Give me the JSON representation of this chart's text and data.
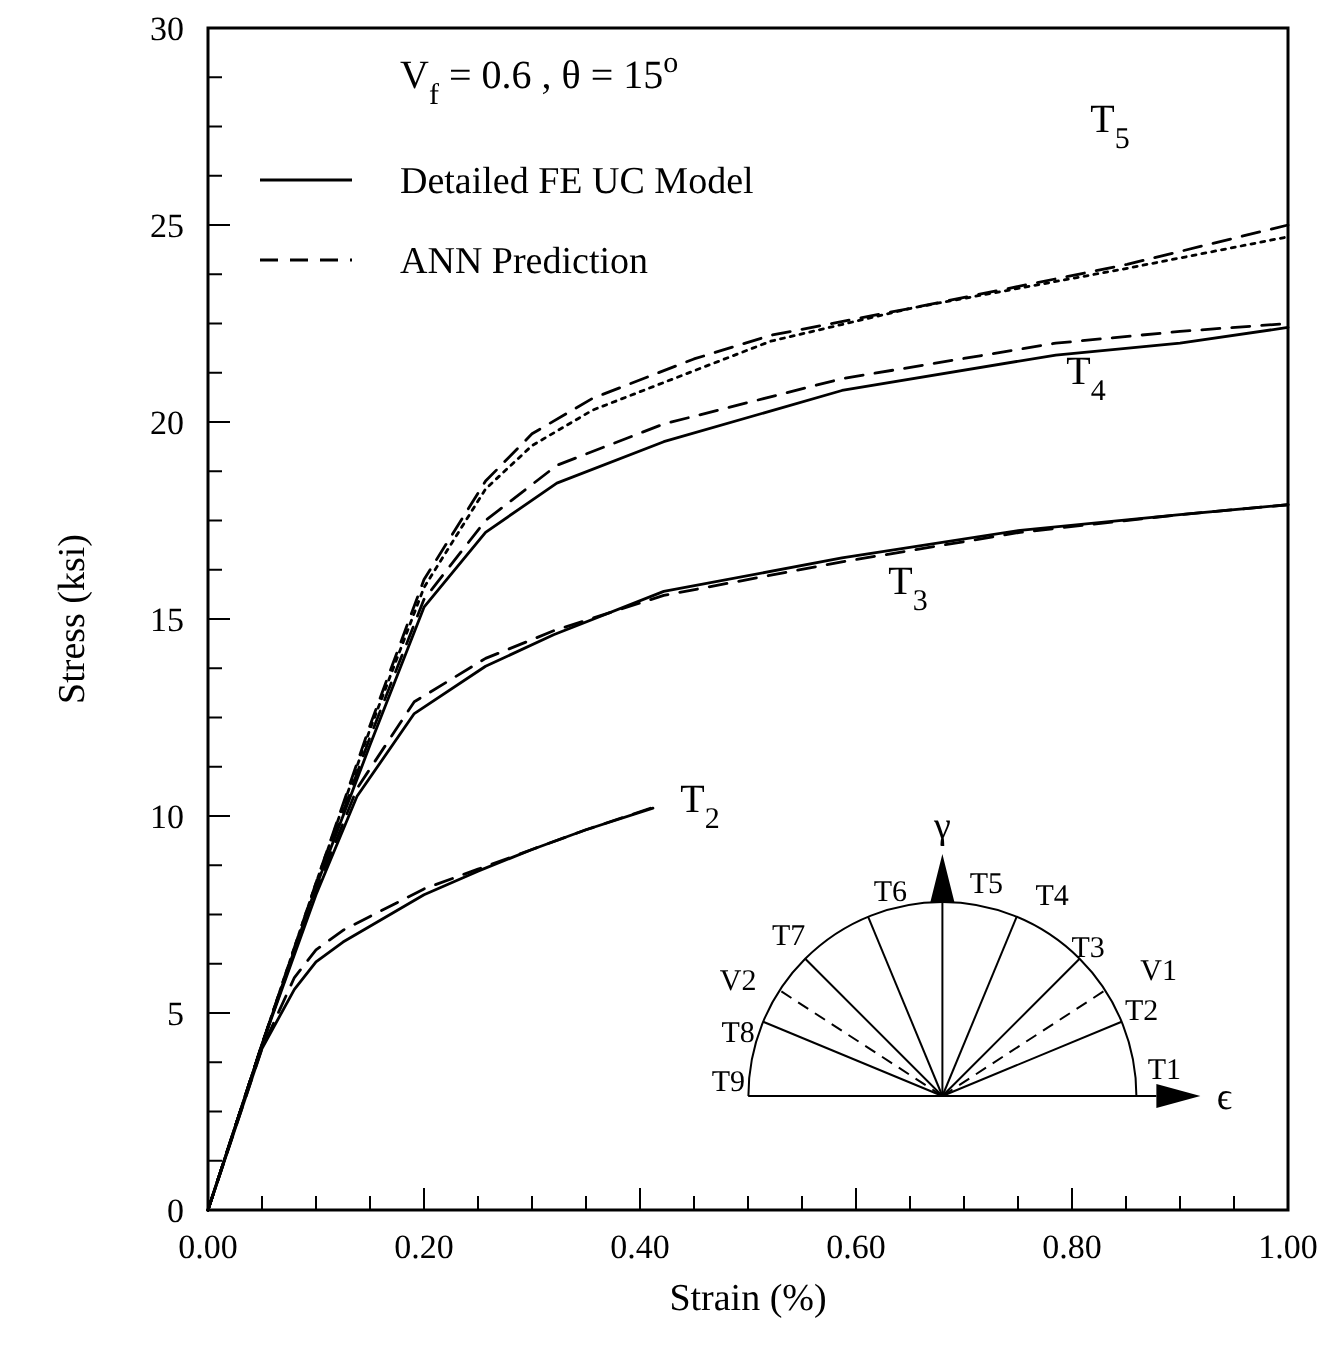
{
  "chart_data": {
    "type": "line",
    "xlabel": "Strain (%)",
    "ylabel": "Stress (ksi)",
    "xlim": [
      0,
      1
    ],
    "ylim": [
      0,
      30
    ],
    "xticks": [
      {
        "value": 0,
        "label": "0.00"
      },
      {
        "value": 0.05,
        "label": null
      },
      {
        "value": 0.1,
        "label": null
      },
      {
        "value": 0.15,
        "label": null
      },
      {
        "value": 0.2,
        "label": "0.20"
      },
      {
        "value": 0.25,
        "label": null
      },
      {
        "value": 0.3,
        "label": null
      },
      {
        "value": 0.35,
        "label": null
      },
      {
        "value": 0.4,
        "label": "0.40"
      },
      {
        "value": 0.45,
        "label": null
      },
      {
        "value": 0.5,
        "label": null
      },
      {
        "value": 0.55,
        "label": null
      },
      {
        "value": 0.6,
        "label": "0.60"
      },
      {
        "value": 0.65,
        "label": null
      },
      {
        "value": 0.7,
        "label": null
      },
      {
        "value": 0.75,
        "label": null
      },
      {
        "value": 0.8,
        "label": "0.80"
      },
      {
        "value": 0.85,
        "label": null
      },
      {
        "value": 0.9,
        "label": null
      },
      {
        "value": 0.95,
        "label": null
      },
      {
        "value": 1,
        "label": "1.00"
      }
    ],
    "yticks": [
      0,
      {
        "value": 1.25,
        "label": null
      },
      {
        "value": 2.5,
        "label": null
      },
      {
        "value": 3.75,
        "label": null
      },
      5,
      {
        "value": 6.25,
        "label": null
      },
      {
        "value": 7.5,
        "label": null
      },
      {
        "value": 8.75,
        "label": null
      },
      10,
      {
        "value": 11.25,
        "label": null
      },
      {
        "value": 12.5,
        "label": null
      },
      {
        "value": 13.75,
        "label": null
      },
      15,
      {
        "value": 16.25,
        "label": null
      },
      {
        "value": 17.5,
        "label": null
      },
      {
        "value": 18.75,
        "label": null
      },
      20,
      {
        "value": 21.25,
        "label": null
      },
      {
        "value": 22.5,
        "label": null
      },
      {
        "value": 23.75,
        "label": null
      },
      25,
      {
        "value": 26.25,
        "label": null
      },
      {
        "value": 27.5,
        "label": null
      },
      {
        "value": 28.75,
        "label": null
      },
      30
    ],
    "legend": "top left",
    "marker": "none",
    "series": [
      {
        "name": "Detailed FE UC Model",
        "color": "#000000",
        "line_style": "solid",
        "x": [
          0,
          0.05,
          0.08,
          0.1,
          0.125,
          0.15,
          0.2,
          0.25,
          0.3,
          0.35,
          0.412
        ],
        "values": [
          0,
          4.1,
          5.6,
          6.3,
          6.8,
          7.2,
          8.0,
          8.6,
          9.15,
          9.65,
          10.2
        ]
      },
      {
        "name": "ANN Prediction",
        "color": "#000000",
        "line_style": "dashed",
        "x": [
          0,
          0.05,
          0.08,
          0.1,
          0.125,
          0.15,
          0.2,
          0.25,
          0.3,
          0.35,
          0.41
        ],
        "values": [
          0,
          4.1,
          5.9,
          6.6,
          7.1,
          7.45,
          8.15,
          8.65,
          9.15,
          9.65,
          10.2
        ]
      },
      {
        "color": "#000000",
        "line_style": "solid",
        "x": [
          0,
          0.05,
          0.1,
          0.138,
          0.191,
          0.257,
          0.32,
          0.422,
          0.587,
          0.752,
          0.9,
          1.0
        ],
        "values": [
          0,
          4.2,
          8.0,
          10.5,
          12.6,
          13.8,
          14.6,
          15.7,
          16.55,
          17.25,
          17.65,
          17.9
        ]
      },
      {
        "color": "#000000",
        "line_style": "dashed",
        "x": [
          0,
          0.05,
          0.1,
          0.138,
          0.191,
          0.257,
          0.32,
          0.422,
          0.587,
          0.752,
          0.9,
          1.0
        ],
        "values": [
          0,
          4.2,
          8.1,
          10.7,
          12.9,
          14.0,
          14.7,
          15.6,
          16.45,
          17.2,
          17.65,
          17.9
        ]
      },
      {
        "color": "#000000",
        "line_style": "solid",
        "x": [
          0,
          0.05,
          0.1,
          0.15,
          0.2,
          0.257,
          0.323,
          0.422,
          0.587,
          0.785,
          0.9,
          1.0
        ],
        "values": [
          0,
          4.2,
          8.2,
          11.8,
          15.3,
          17.2,
          18.45,
          19.5,
          20.8,
          21.7,
          22.0,
          22.4
        ]
      },
      {
        "color": "#000000",
        "line_style": "dashed",
        "x": [
          0,
          0.05,
          0.1,
          0.15,
          0.2,
          0.257,
          0.323,
          0.422,
          0.587,
          0.785,
          0.9,
          1.0
        ],
        "values": [
          0,
          4.2,
          8.2,
          12.0,
          15.5,
          17.5,
          18.9,
          19.95,
          21.1,
          22.0,
          22.3,
          22.5
        ]
      },
      {
        "color": "#000000",
        "line_style": "dotted",
        "x": [
          0,
          0.05,
          0.1,
          0.15,
          0.2,
          0.257,
          0.3,
          0.356,
          0.45,
          0.521,
          0.653,
          0.851,
          1.0
        ],
        "values": [
          0,
          4.2,
          8.3,
          12.2,
          15.8,
          18.3,
          19.4,
          20.3,
          21.3,
          22.05,
          22.9,
          23.9,
          24.7
        ]
      },
      {
        "color": "#000000",
        "line_style": "dashed",
        "x": [
          0,
          0.05,
          0.1,
          0.15,
          0.2,
          0.257,
          0.3,
          0.356,
          0.45,
          0.521,
          0.653,
          0.851,
          1.0
        ],
        "values": [
          0,
          4.2,
          8.3,
          12.3,
          16.0,
          18.5,
          19.7,
          20.6,
          21.6,
          22.2,
          22.9,
          24.0,
          25.0
        ]
      }
    ],
    "annotations": [
      "V$_{f}$ = 0.6 , θ = 15$^{o}$",
      "T$_{5}$",
      "T$_{4}$",
      "T$_{3}$",
      "T$_{2}$",
      "T1",
      "T2",
      "V1",
      "T3",
      "T4",
      "T5",
      "T6",
      "T7",
      "V2",
      "T8",
      "T9",
      "γ",
      "ϵ"
    ]
  }
}
